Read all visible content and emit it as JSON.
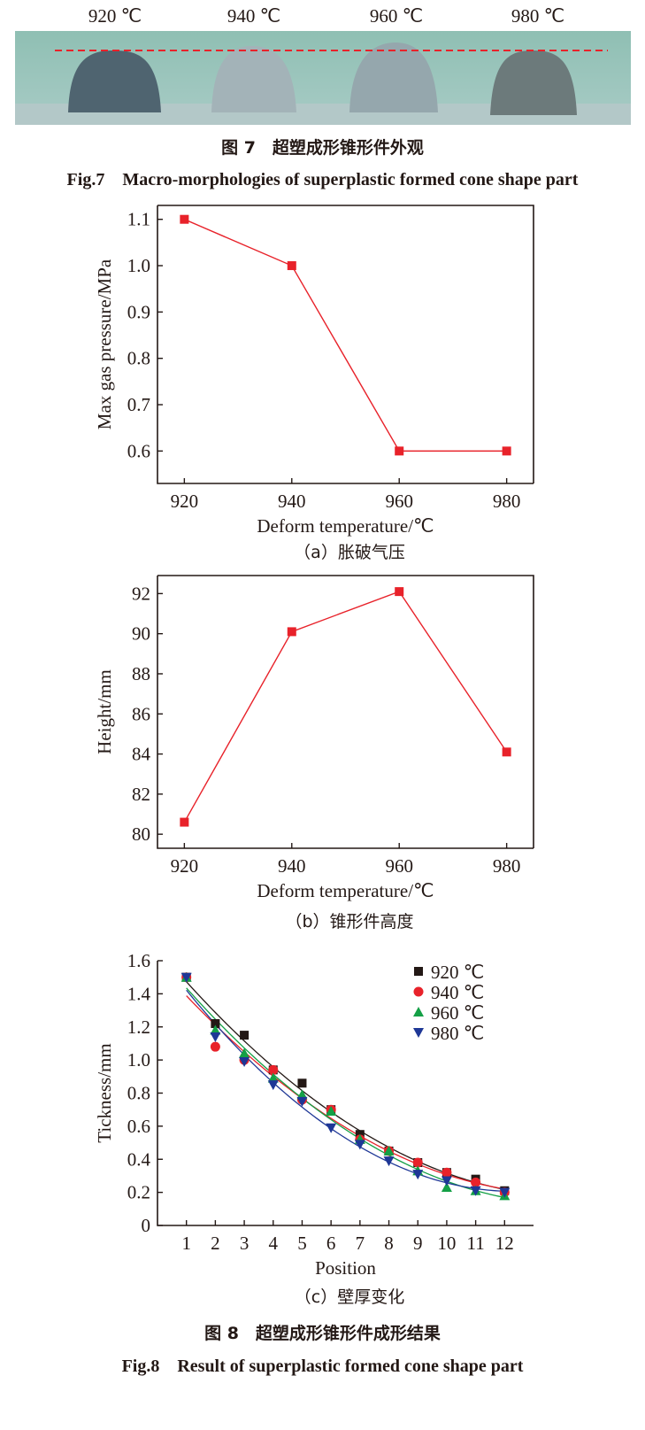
{
  "figure7": {
    "photo_labels": [
      "920 ℃",
      "940 ℃",
      "960 ℃",
      "980 ℃"
    ],
    "caption_cn": "图 7　超塑成形锥形件外观",
    "caption_en": "Fig.7　Macro-morphologies of superplastic formed cone shape part",
    "reference_line_color": "#e8222a"
  },
  "figure8": {
    "caption_cn": "图 8　超塑成形锥形件成形结果",
    "caption_en": "Fig.8　Result of superplastic formed cone shape part"
  },
  "chart_data": [
    {
      "id": "a",
      "type": "line",
      "subcaption": "（a）胀破气压",
      "xlabel": "Deform temperature/℃",
      "ylabel": "Max gas pressure/MPa",
      "x": [
        920,
        940,
        960,
        980
      ],
      "values": [
        1.1,
        1.0,
        0.6,
        0.6
      ],
      "xlim": [
        915,
        985
      ],
      "ylim": [
        0.53,
        1.13
      ],
      "xticks": [
        920,
        940,
        960,
        980
      ],
      "yticks": [
        0.6,
        0.7,
        0.8,
        0.9,
        1.0,
        1.1
      ],
      "ytick_labels": [
        "0.6",
        "0.7",
        "0.8",
        "0.9",
        "1.0",
        "1.1"
      ],
      "color": "#e8222a",
      "marker": "square",
      "grid": false
    },
    {
      "id": "b",
      "type": "line",
      "subcaption": "（b）锥形件高度",
      "xlabel": "Deform temperature/℃",
      "ylabel": "Height/mm",
      "x": [
        920,
        940,
        960,
        980
      ],
      "values": [
        80.6,
        90.1,
        92.1,
        84.1
      ],
      "xlim": [
        915,
        985
      ],
      "ylim": [
        79.3,
        92.9
      ],
      "xticks": [
        920,
        940,
        960,
        980
      ],
      "yticks": [
        80,
        82,
        84,
        86,
        88,
        90,
        92
      ],
      "ytick_labels": [
        "80",
        "82",
        "84",
        "86",
        "88",
        "90",
        "92"
      ],
      "color": "#e8222a",
      "marker": "square",
      "grid": false
    },
    {
      "id": "c",
      "type": "scatter",
      "subcaption": "（c）壁厚变化",
      "xlabel": "Position",
      "ylabel": "Tickness/mm",
      "x": [
        1,
        2,
        3,
        4,
        5,
        6,
        7,
        8,
        9,
        10,
        11,
        12
      ],
      "xlim": [
        0,
        13
      ],
      "ylim": [
        0,
        1.6
      ],
      "xticks": [
        1,
        2,
        3,
        4,
        5,
        6,
        7,
        8,
        9,
        10,
        11,
        12
      ],
      "yticks": [
        0,
        0.2,
        0.4,
        0.6,
        0.8,
        1.0,
        1.2,
        1.4,
        1.6
      ],
      "ytick_labels": [
        "0",
        "0.2",
        "0.4",
        "0.6",
        "0.8",
        "1.0",
        "1.2",
        "1.4",
        "1.6"
      ],
      "legend": "top-right",
      "trendlines": "polynomial fit",
      "grid": false,
      "series": [
        {
          "name": "920 ℃",
          "color": "#231815",
          "marker": "square",
          "values": [
            1.5,
            1.22,
            1.15,
            0.94,
            0.86,
            0.7,
            0.55,
            0.45,
            0.38,
            0.32,
            0.28,
            0.21
          ]
        },
        {
          "name": "940 ℃",
          "color": "#e8222a",
          "marker": "circle",
          "values": [
            1.5,
            1.08,
            1.0,
            0.94,
            0.76,
            0.7,
            0.52,
            0.45,
            0.38,
            0.32,
            0.26,
            0.2
          ]
        },
        {
          "name": "960 ℃",
          "color": "#14a046",
          "marker": "triangle-up",
          "values": [
            1.5,
            1.18,
            1.04,
            0.89,
            0.79,
            0.69,
            0.52,
            0.45,
            0.33,
            0.23,
            0.21,
            0.18
          ]
        },
        {
          "name": "980 ℃",
          "color": "#1e3796",
          "marker": "triangle-down",
          "values": [
            1.5,
            1.14,
            0.99,
            0.85,
            0.75,
            0.59,
            0.49,
            0.39,
            0.31,
            0.27,
            0.21,
            0.2
          ]
        }
      ]
    }
  ]
}
